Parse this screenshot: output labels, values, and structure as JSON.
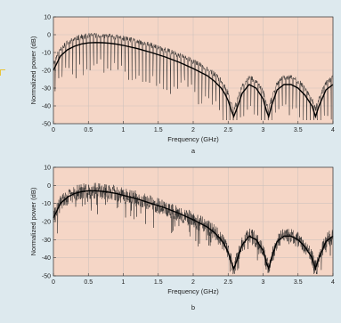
{
  "figure": {
    "background": "#dde9ee",
    "plot_background": "#f5d6c6",
    "grid_color": "#cfc2bc",
    "envelope_color": "#000000",
    "trace_color": "#2a2a2a"
  },
  "chart_data": [
    {
      "type": "line",
      "panel_label": "a",
      "title": "",
      "xlabel": "Frequency (GHz)",
      "ylabel": "Normalized power (dB)",
      "xlim": [
        0,
        4
      ],
      "ylim": [
        -50,
        10
      ],
      "xticks": [
        "0",
        "0.5",
        "1",
        "1.5",
        "2",
        "2.5",
        "3",
        "3.5",
        "4"
      ],
      "yticks": [
        "10",
        "0",
        "-10",
        "-20",
        "-30",
        "-40",
        "-50"
      ],
      "grid": true,
      "legend": "none",
      "series": [
        {
          "role": "envelope",
          "x": [
            0,
            0.05,
            0.1,
            0.2,
            0.3,
            0.4,
            0.5,
            0.6,
            0.7,
            0.8,
            0.9,
            1.0,
            1.2,
            1.4,
            1.6,
            1.8,
            2.0,
            2.1,
            2.2,
            2.3,
            2.4,
            2.45,
            2.5,
            2.55,
            2.58,
            2.62,
            2.7,
            2.8,
            2.9,
            3.0,
            3.05,
            3.08,
            3.12,
            3.2,
            3.3,
            3.4,
            3.5,
            3.6,
            3.7,
            3.75,
            3.8,
            3.9,
            4.0
          ],
          "y": [
            -20,
            -16,
            -12,
            -8.5,
            -6.5,
            -5.2,
            -4.6,
            -4.4,
            -4.5,
            -4.8,
            -5.3,
            -6,
            -7.8,
            -10,
            -12.5,
            -15.5,
            -19,
            -21,
            -23,
            -26,
            -30,
            -33,
            -37,
            -43,
            -46,
            -42,
            -33,
            -28,
            -30,
            -36,
            -43,
            -46,
            -40,
            -31,
            -28,
            -28,
            -30,
            -34,
            -40,
            -46,
            -40,
            -31,
            -28
          ]
        },
        {
          "role": "measured",
          "offset_db": 4,
          "comb_spacing_ghz": 0.05,
          "comb_depth_db": 26,
          "floor_db": -48
        }
      ]
    },
    {
      "type": "line",
      "panel_label": "b",
      "title": "",
      "xlabel": "Frequency (GHz)",
      "ylabel": "Normalized power (dB)",
      "xlim": [
        0,
        4
      ],
      "ylim": [
        -50,
        10
      ],
      "xticks": [
        "0",
        "0.5",
        "1",
        "1.5",
        "2",
        "2.5",
        "3",
        "3.5",
        "4"
      ],
      "yticks": [
        "10",
        "0",
        "-10",
        "-20",
        "-30",
        "-40",
        "-50"
      ],
      "grid": true,
      "legend": "none",
      "series": [
        {
          "role": "envelope",
          "x": [
            0,
            0.05,
            0.1,
            0.2,
            0.3,
            0.4,
            0.5,
            0.6,
            0.7,
            0.8,
            0.9,
            1.0,
            1.2,
            1.4,
            1.6,
            1.8,
            2.0,
            2.1,
            2.2,
            2.3,
            2.4,
            2.45,
            2.5,
            2.55,
            2.58,
            2.62,
            2.7,
            2.8,
            2.9,
            3.0,
            3.05,
            3.08,
            3.12,
            3.2,
            3.3,
            3.4,
            3.5,
            3.6,
            3.7,
            3.75,
            3.8,
            3.9,
            4.0
          ],
          "y": [
            -18,
            -14,
            -10,
            -6.5,
            -4.5,
            -3.5,
            -3,
            -3,
            -3.3,
            -3.8,
            -4.5,
            -5.5,
            -7.5,
            -10,
            -12.5,
            -15.5,
            -19,
            -21,
            -23,
            -26,
            -30,
            -33,
            -37,
            -43,
            -46,
            -42,
            -33,
            -28,
            -30,
            -36,
            -43,
            -46,
            -40,
            -31,
            -28,
            -28,
            -30,
            -34,
            -40,
            -46,
            -40,
            -31,
            -28
          ]
        },
        {
          "role": "measured",
          "offset_db": 0,
          "noise_db": 4.5,
          "floor_db": -49
        }
      ]
    }
  ]
}
